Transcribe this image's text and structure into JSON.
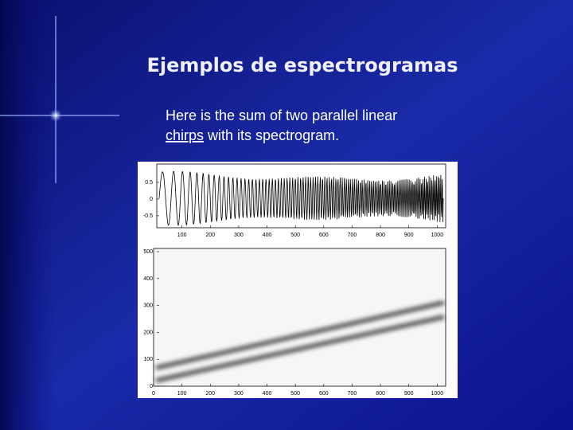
{
  "slide": {
    "title": "Ejemplos de espectrogramas",
    "body_line1": "Here is the sum of two parallel linear",
    "body_link": "chirps",
    "body_line2": "with its spectrogram."
  },
  "figure": {
    "signal": {
      "xlim": [
        0,
        1030
      ],
      "xticks": [
        100,
        200,
        300,
        400,
        500,
        600,
        700,
        800,
        900,
        1000
      ],
      "ylim": [
        -0.86,
        1.05
      ],
      "yticks": [
        0.5,
        0,
        -0.5
      ]
    },
    "spectrogram": {
      "xlim": [
        0,
        1030
      ],
      "xticks": [
        0,
        100,
        200,
        300,
        400,
        500,
        600,
        700,
        800,
        900,
        1000
      ],
      "ylim": [
        0,
        512
      ],
      "yticks": [
        0,
        100,
        200,
        300,
        400,
        500
      ]
    }
  }
}
